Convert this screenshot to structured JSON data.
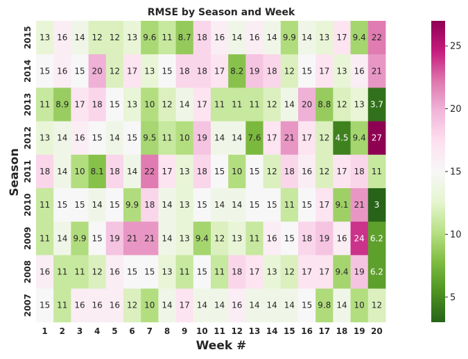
{
  "chart_data": {
    "type": "heatmap",
    "title": "RMSE by Season and Week",
    "xlabel": "Week #",
    "ylabel": "Season",
    "x_categories": [
      "1",
      "2",
      "3",
      "4",
      "5",
      "6",
      "7",
      "8",
      "9",
      "10",
      "11",
      "12",
      "13",
      "14",
      "15",
      "16",
      "17",
      "18",
      "19",
      "20"
    ],
    "y_categories": [
      "2015",
      "2014",
      "2013",
      "2012",
      "2011",
      "2010",
      "2009",
      "2008",
      "2007"
    ],
    "cells": [
      [
        "13",
        "16",
        "14",
        "12",
        "12",
        "13",
        "9.6",
        "11",
        "8.7",
        "18",
        "16",
        "14",
        "16",
        "14",
        "9.9",
        "14",
        "13",
        "17",
        "9.4",
        "22"
      ],
      [
        "15",
        "16",
        "15",
        "20",
        "12",
        "17",
        "13",
        "15",
        "18",
        "18",
        "17",
        "8.2",
        "19",
        "18",
        "12",
        "15",
        "17",
        "13",
        "16",
        "21"
      ],
      [
        "11",
        "8.9",
        "17",
        "18",
        "15",
        "13",
        "10",
        "12",
        "14",
        "17",
        "11",
        "11",
        "11",
        "12",
        "14",
        "20",
        "8.8",
        "12",
        "13",
        "3.7"
      ],
      [
        "13",
        "14",
        "16",
        "15",
        "14",
        "15",
        "9.5",
        "11",
        "10",
        "19",
        "14",
        "14",
        "7.6",
        "17",
        "21",
        "17",
        "12",
        "4.5",
        "9.4",
        "27"
      ],
      [
        "18",
        "14",
        "10",
        "8.1",
        "18",
        "14",
        "22",
        "17",
        "13",
        "18",
        "15",
        "10",
        "15",
        "12",
        "18",
        "16",
        "12",
        "17",
        "18",
        "11"
      ],
      [
        "11",
        "15",
        "15",
        "14",
        "15",
        "9.9",
        "18",
        "14",
        "13",
        "15",
        "14",
        "14",
        "15",
        "15",
        "11",
        "15",
        "17",
        "9.1",
        "21",
        "3"
      ],
      [
        "11",
        "14",
        "9.9",
        "15",
        "19",
        "21",
        "21",
        "14",
        "13",
        "9.4",
        "12",
        "13",
        "11",
        "16",
        "15",
        "18",
        "19",
        "16",
        "24",
        "6.2"
      ],
      [
        "16",
        "11",
        "11",
        "12",
        "16",
        "15",
        "15",
        "13",
        "11",
        "15",
        "11",
        "18",
        "17",
        "13",
        "12",
        "17",
        "17",
        "9.4",
        "19",
        "6.2"
      ],
      [
        "15",
        "11",
        "16",
        "16",
        "16",
        "12",
        "10",
        "14",
        "17",
        "14",
        "14",
        "16",
        "14",
        "14",
        "14",
        "15",
        "9.8",
        "14",
        "10",
        "12"
      ]
    ],
    "colorbar": {
      "colormap": "PiYG_r",
      "vmin": 3,
      "vmax": 27,
      "ticks": [
        "5",
        "10",
        "15",
        "20",
        "25"
      ]
    }
  }
}
